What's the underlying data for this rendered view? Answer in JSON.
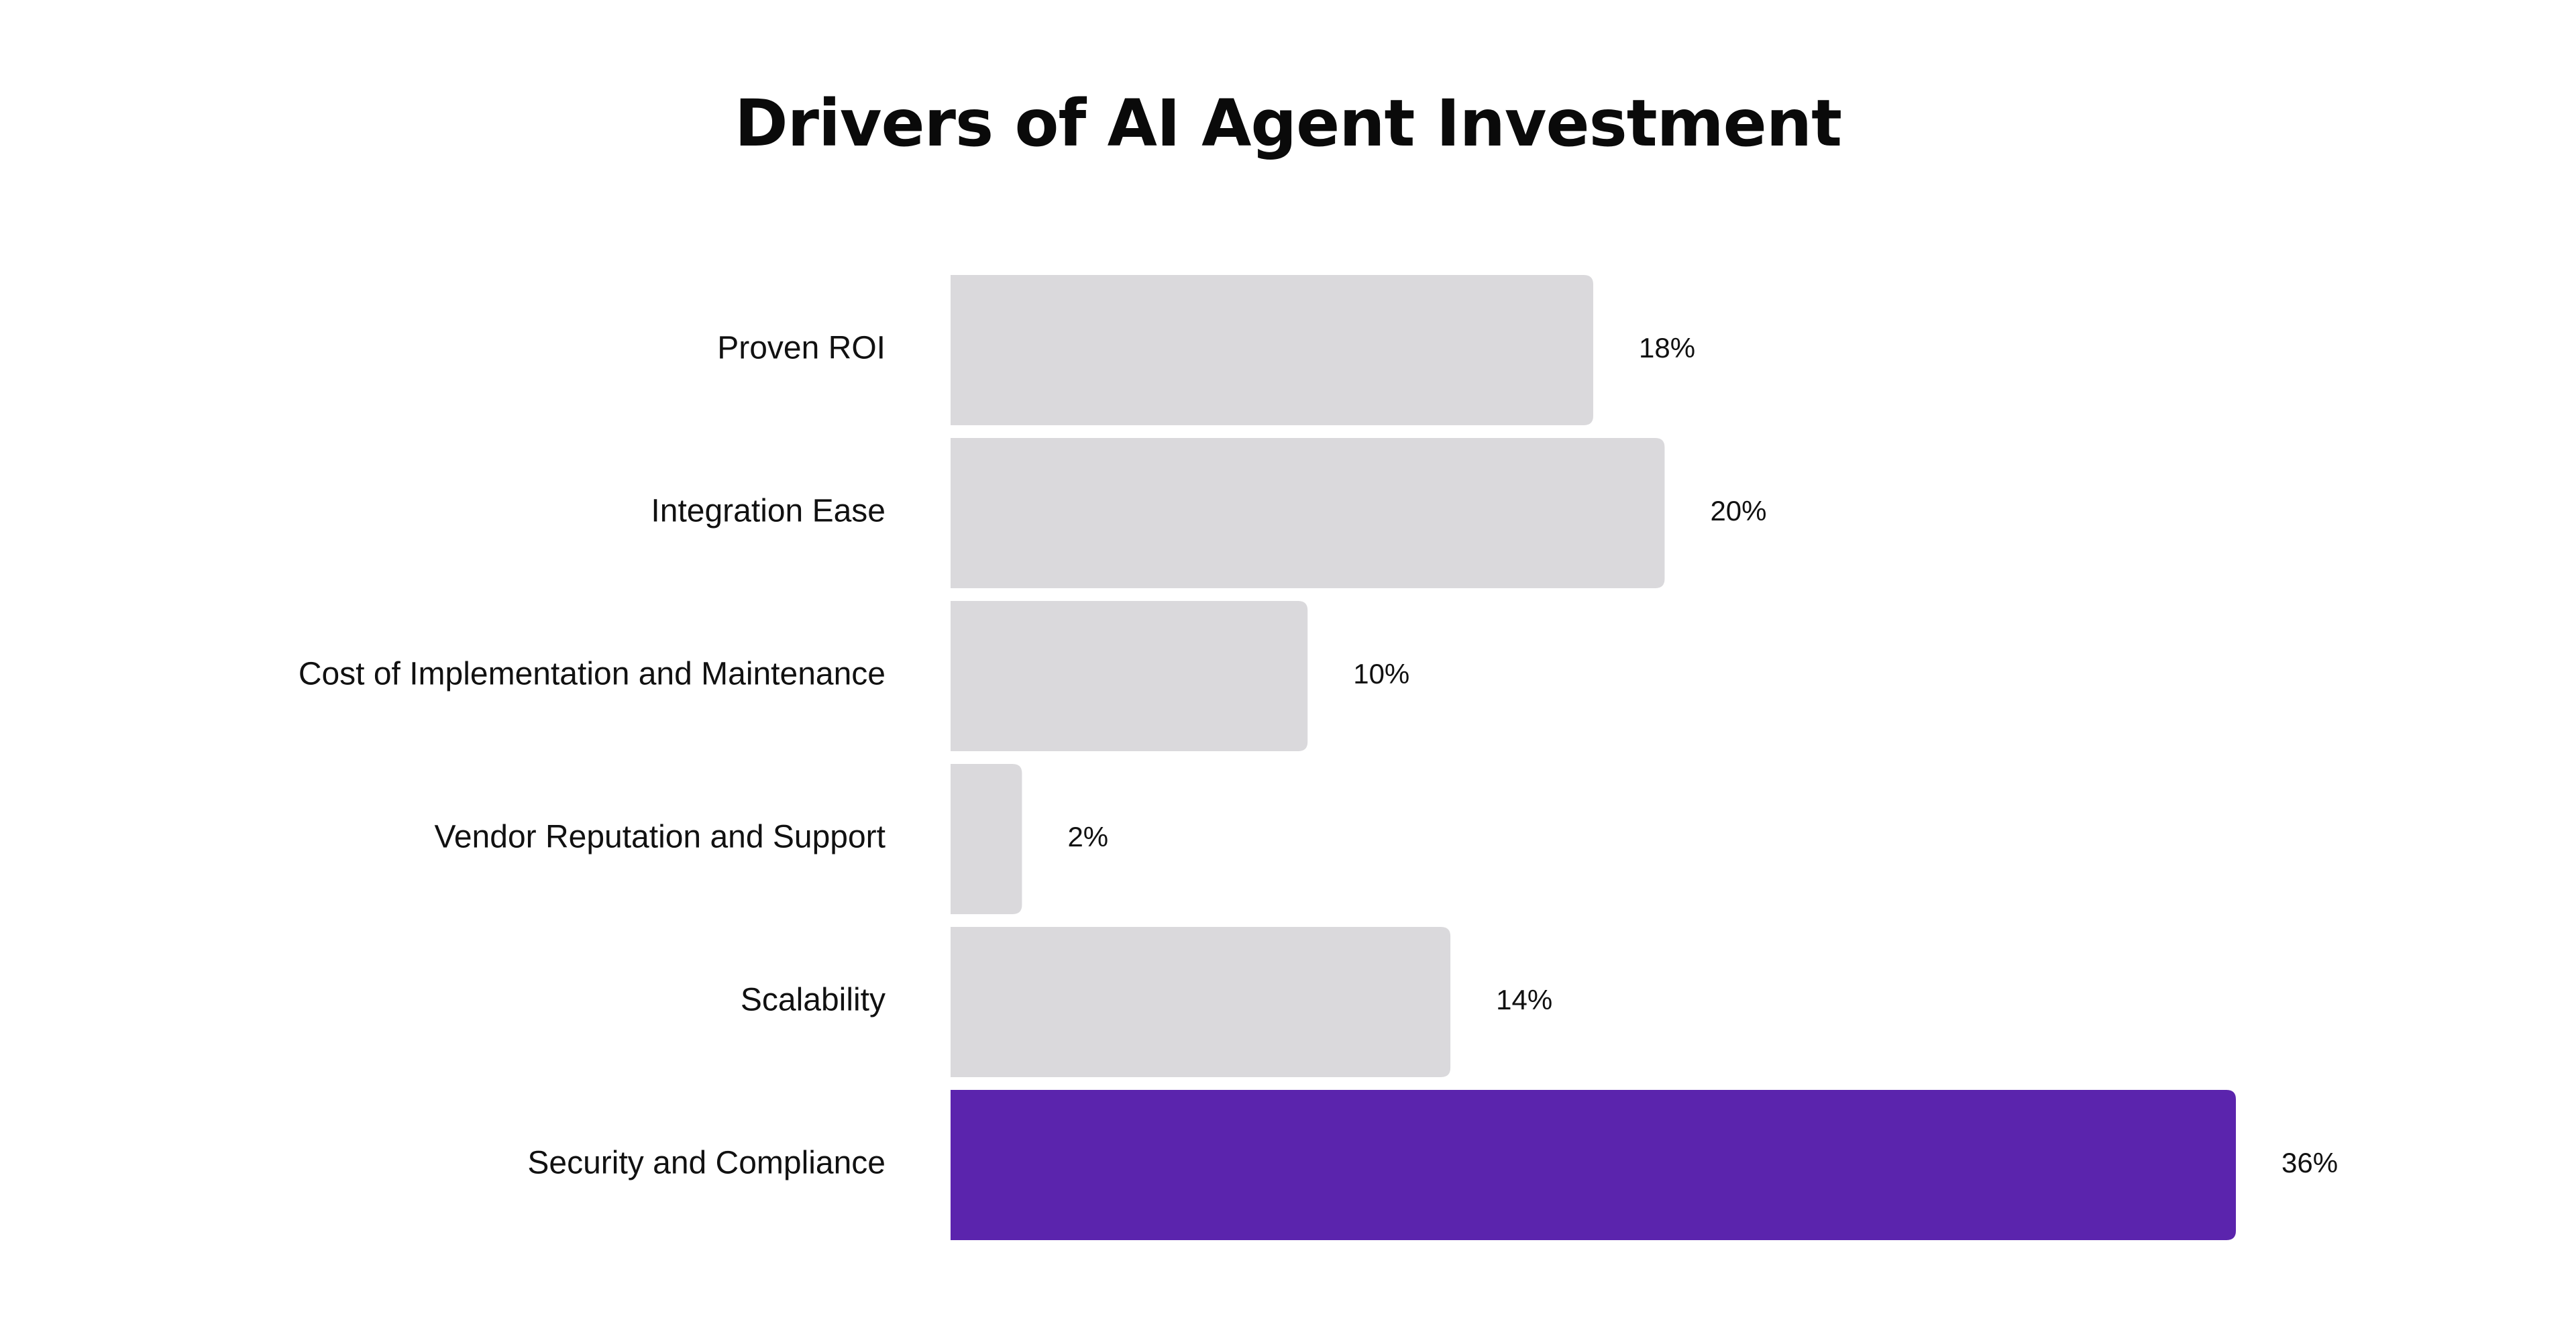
{
  "chart_data": {
    "type": "bar",
    "orientation": "horizontal",
    "title": "Drivers of AI Agent Investment",
    "xlabel": "",
    "ylabel": "",
    "xlim": [
      0,
      36
    ],
    "grid": false,
    "categories": [
      "Proven ROI",
      "Integration Ease",
      "Cost of Implementation and Maintenance",
      "Vendor Reputation and Support",
      "Scalability",
      "Security and Compliance"
    ],
    "values": [
      18,
      20,
      10,
      2,
      14,
      36
    ],
    "data_labels": [
      "18%",
      "20%",
      "10%",
      "2%",
      "14%",
      "36%"
    ],
    "colors": {
      "default_bar": "#DAD9DC",
      "highlight_bar": "#5B24AD",
      "text": "#111111",
      "background": "#FFFFFF"
    },
    "highlight_category": "Security and Compliance"
  }
}
